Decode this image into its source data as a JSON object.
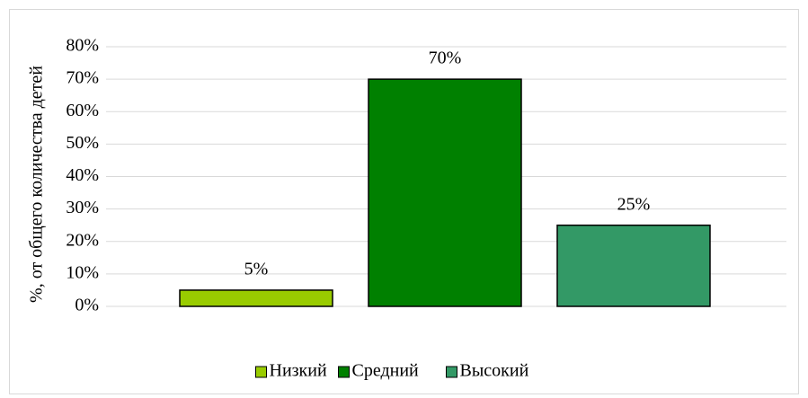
{
  "chart_data": {
    "type": "bar",
    "y_label": "%, от общего количества детей",
    "categories": [
      "Низкий",
      "Средний",
      "Высокий"
    ],
    "values": [
      5,
      70,
      25
    ],
    "value_labels": [
      "5%",
      "70%",
      "25%"
    ],
    "colors": [
      "#99cc00",
      "#008000",
      "#339966"
    ],
    "ylim": [
      0,
      80
    ],
    "yticks": [
      {
        "value": 0,
        "label": "0%"
      },
      {
        "value": 10,
        "label": "10%"
      },
      {
        "value": 20,
        "label": "20%"
      },
      {
        "value": 30,
        "label": "30%"
      },
      {
        "value": 40,
        "label": "40%"
      },
      {
        "value": 50,
        "label": "50%"
      },
      {
        "value": 60,
        "label": "60%"
      },
      {
        "value": 70,
        "label": "70%"
      },
      {
        "value": 80,
        "label": "80%"
      }
    ],
    "grid": true,
    "legend": "bottom"
  }
}
